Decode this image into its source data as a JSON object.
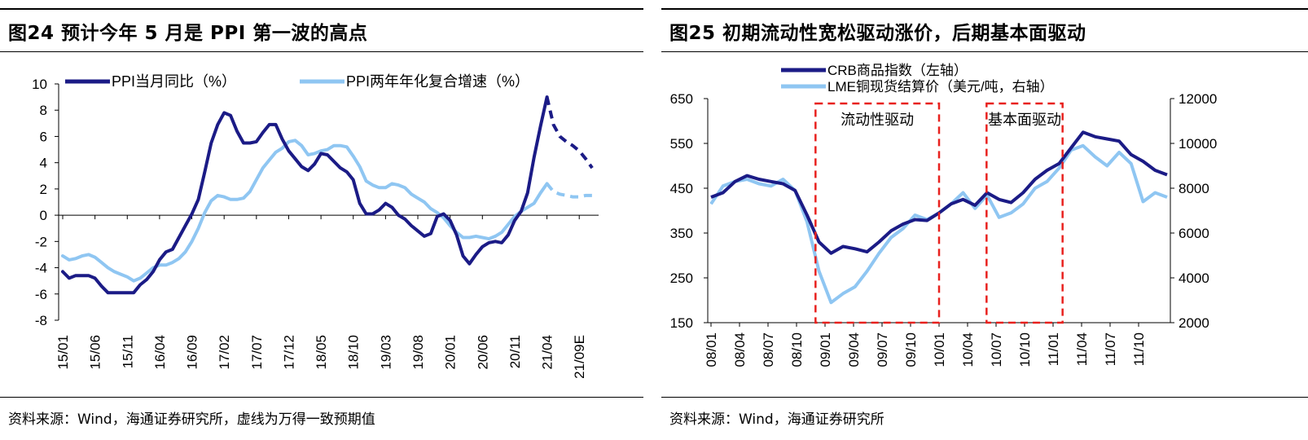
{
  "left": {
    "title": "图24  预计今年 5 月是 PPI 第一波的高点",
    "source": "资料来源：Wind，海通证券研究所，虚线为万得一致预期值",
    "chart_data": {
      "type": "line",
      "title": "",
      "y_ticks": [
        -8,
        -6,
        -4,
        -2,
        0,
        2,
        4,
        6,
        8,
        10
      ],
      "ylim": [
        -8,
        10
      ],
      "x_tick_labels": [
        "15/01",
        "15/06",
        "15/11",
        "16/04",
        "16/09",
        "17/02",
        "17/07",
        "17/12",
        "18/05",
        "18/10",
        "19/03",
        "19/08",
        "20/01",
        "20/06",
        "20/11",
        "21/04",
        "21/09E"
      ],
      "legend_position": "top",
      "series": [
        {
          "name": "PPI当月同比（%）",
          "color": "#1b1b86",
          "values": [
            -4.3,
            -4.8,
            -4.6,
            -4.6,
            -4.6,
            -4.8,
            -5.4,
            -5.9,
            -5.9,
            -5.9,
            -5.9,
            -5.9,
            -5.3,
            -4.9,
            -4.3,
            -3.4,
            -2.8,
            -2.6,
            -1.7,
            -0.8,
            0.1,
            1.2,
            3.3,
            5.5,
            6.9,
            7.8,
            7.6,
            6.4,
            5.5,
            5.5,
            5.6,
            6.3,
            6.9,
            6.9,
            5.8,
            4.9,
            4.3,
            3.7,
            3.4,
            3.9,
            4.7,
            4.6,
            4.1,
            3.6,
            3.3,
            2.7,
            0.9,
            0.1,
            0.1,
            0.4,
            0.9,
            0.6,
            0.0,
            -0.3,
            -0.8,
            -1.2,
            -1.6,
            -1.4,
            -0.1,
            0.1,
            -0.4,
            -1.5,
            -3.1,
            -3.7,
            -3.0,
            -2.4,
            -2.1,
            -2.0,
            -2.1,
            -1.5,
            -0.4,
            0.3,
            1.7,
            4.4,
            6.8,
            9.0
          ],
          "forecast": [
            9.0,
            6.9,
            6.0,
            5.6,
            5.3,
            4.9,
            4.3,
            3.6
          ]
        },
        {
          "name": "PPI两年年化复合增速（%）",
          "color": "#8fc6f2",
          "values": [
            -3.1,
            -3.4,
            -3.3,
            -3.1,
            -3.0,
            -3.2,
            -3.6,
            -4.0,
            -4.3,
            -4.5,
            -4.7,
            -5.0,
            -4.8,
            -4.4,
            -4.0,
            -3.8,
            -3.8,
            -3.6,
            -3.3,
            -2.8,
            -2.0,
            -1.0,
            0.2,
            1.1,
            1.5,
            1.4,
            1.2,
            1.2,
            1.3,
            1.8,
            2.7,
            3.6,
            4.2,
            4.8,
            5.1,
            5.6,
            5.7,
            5.3,
            4.6,
            4.7,
            4.9,
            5.0,
            5.3,
            5.3,
            5.2,
            4.5,
            3.7,
            2.6,
            2.3,
            2.1,
            2.1,
            2.4,
            2.3,
            2.1,
            1.6,
            1.3,
            1.0,
            0.5,
            0.2,
            -0.2,
            -0.8,
            -1.3,
            -1.7,
            -1.7,
            -1.6,
            -1.7,
            -1.8,
            -1.6,
            -1.3,
            -0.7,
            -0.1,
            0.3,
            0.6,
            0.9,
            1.7,
            2.4
          ],
          "forecast": [
            2.4,
            1.8,
            1.6,
            1.5,
            1.4,
            1.4,
            1.5,
            1.5
          ]
        }
      ]
    }
  },
  "right": {
    "title": "图25 初期流动性宽松驱动涨价，后期基本面驱动",
    "source": "资料来源：Wind，海通证券研究所",
    "chart_data": {
      "type": "line",
      "title": "",
      "y_left_ticks": [
        150,
        250,
        350,
        450,
        550,
        650
      ],
      "ylim_left": [
        150,
        650
      ],
      "y_right_ticks": [
        2000,
        4000,
        6000,
        8000,
        10000,
        12000
      ],
      "ylim_right": [
        2000,
        12000
      ],
      "x_tick_labels": [
        "08/01",
        "08/04",
        "08/07",
        "08/10",
        "09/01",
        "09/04",
        "09/07",
        "09/10",
        "10/01",
        "10/04",
        "10/07",
        "10/10",
        "11/01",
        "11/04",
        "11/07",
        "11/10"
      ],
      "legend_position": "top",
      "series": [
        {
          "name": "CRB商品指数（左轴）",
          "axis": "left",
          "color": "#1b1b86",
          "values": [
            430,
            440,
            465,
            478,
            470,
            465,
            460,
            445,
            390,
            330,
            305,
            320,
            315,
            308,
            330,
            355,
            370,
            380,
            378,
            395,
            415,
            425,
            412,
            440,
            425,
            418,
            440,
            470,
            490,
            505,
            540,
            575,
            565,
            560,
            555,
            525,
            510,
            490,
            480
          ]
        },
        {
          "name": "LME铜现货结算价（美元/吨，右轴）",
          "axis": "right",
          "color": "#8fc6f2",
          "values": [
            7300,
            8100,
            8300,
            8400,
            8200,
            8100,
            8400,
            7900,
            6500,
            4300,
            2900,
            3300,
            3600,
            4300,
            5100,
            5800,
            6200,
            6800,
            6600,
            6900,
            7300,
            7800,
            7100,
            7700,
            6700,
            6900,
            7300,
            8000,
            8300,
            8900,
            9700,
            9900,
            9400,
            9000,
            9600,
            9100,
            7400,
            7800,
            7600
          ]
        }
      ],
      "annotations": [
        {
          "label": "流动性驱动",
          "x_start": "08/12",
          "x_end": "10/01"
        },
        {
          "label": "基本面驱动",
          "x_start": "10/06",
          "x_end": "11/02"
        }
      ]
    }
  }
}
